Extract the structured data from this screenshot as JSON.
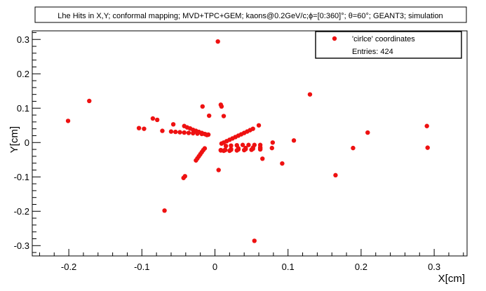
{
  "chart_data": {
    "type": "scatter",
    "title": "Lhe Hits in X,Y; conformal mapping; MVD+TPC+GEM; kaons@0.2GeV/c;ϕ=[0:360]°; θ=60°; GEANT3; simulation",
    "xlabel": "X[cm]",
    "ylabel": "Y[cm]",
    "xlim": [
      -0.25,
      0.345
    ],
    "ylim": [
      -0.33,
      0.325
    ],
    "x_ticks": [
      -0.2,
      -0.1,
      0,
      0.1,
      0.2,
      0.3
    ],
    "y_ticks": [
      -0.3,
      -0.2,
      -0.1,
      0,
      0.1,
      0.2,
      0.3
    ],
    "grid": false,
    "marker_color": "#ee1111",
    "legend": {
      "position": "top-right",
      "entry_label": "'cirlce' coordinates",
      "stats_label": "Entries:  424"
    },
    "series": [
      {
        "name": "'cirlce' coordinates",
        "points": [
          [
            0.004,
            0.294
          ],
          [
            -0.172,
            0.121
          ],
          [
            -0.201,
            0.063
          ],
          [
            0.13,
            0.14
          ],
          [
            0.008,
            0.11
          ],
          [
            0.009,
            0.105
          ],
          [
            -0.017,
            0.105
          ],
          [
            -0.085,
            0.07
          ],
          [
            -0.079,
            0.066
          ],
          [
            -0.104,
            0.042
          ],
          [
            -0.097,
            0.04
          ],
          [
            -0.072,
            0.034
          ],
          [
            -0.057,
            0.053
          ],
          [
            -0.008,
            0.078
          ],
          [
            0.012,
            0.077
          ],
          [
            0.06,
            0.05
          ],
          [
            0.108,
            0.006
          ],
          [
            0.079,
            0.0
          ],
          [
            0.078,
            -0.016
          ],
          [
            0.189,
            -0.016
          ],
          [
            0.209,
            0.029
          ],
          [
            0.29,
            0.048
          ],
          [
            0.291,
            -0.015
          ],
          [
            0.165,
            -0.095
          ],
          [
            0.092,
            -0.061
          ],
          [
            0.065,
            -0.047
          ],
          [
            0.005,
            -0.08
          ],
          [
            -0.041,
            -0.098
          ],
          [
            -0.043,
            -0.103
          ],
          [
            -0.069,
            -0.198
          ],
          [
            0.054,
            -0.286
          ],
          [
            -0.042,
            0.048
          ],
          [
            -0.038,
            0.044
          ],
          [
            -0.034,
            0.041
          ],
          [
            -0.03,
            0.037
          ],
          [
            -0.026,
            0.034
          ],
          [
            -0.022,
            0.031
          ],
          [
            -0.018,
            0.028
          ],
          [
            -0.014,
            0.025
          ],
          [
            -0.011,
            0.022
          ],
          [
            -0.06,
            0.032
          ],
          [
            -0.054,
            0.031
          ],
          [
            -0.048,
            0.03
          ],
          [
            -0.042,
            0.029
          ],
          [
            -0.036,
            0.028
          ],
          [
            -0.03,
            0.027
          ],
          [
            -0.024,
            0.026
          ],
          [
            -0.018,
            0.025
          ],
          [
            -0.013,
            0.024
          ],
          [
            -0.009,
            0.023
          ],
          [
            -0.026,
            -0.052
          ],
          [
            -0.024,
            -0.046
          ],
          [
            -0.022,
            -0.04
          ],
          [
            -0.02,
            -0.034
          ],
          [
            -0.018,
            -0.028
          ],
          [
            -0.016,
            -0.022
          ],
          [
            -0.014,
            -0.017
          ],
          [
            0.052,
            0.04
          ],
          [
            0.048,
            0.036
          ],
          [
            0.044,
            0.032
          ],
          [
            0.04,
            0.028
          ],
          [
            0.036,
            0.024
          ],
          [
            0.032,
            0.02
          ],
          [
            0.028,
            0.016
          ],
          [
            0.024,
            0.012
          ],
          [
            0.02,
            0.008
          ],
          [
            0.016,
            0.004
          ],
          [
            0.012,
            0.0
          ],
          [
            0.009,
            -0.003
          ],
          [
            0.062,
            -0.007
          ],
          [
            0.054,
            -0.007
          ],
          [
            0.046,
            -0.007
          ],
          [
            0.038,
            -0.007
          ],
          [
            0.03,
            -0.008
          ],
          [
            0.022,
            -0.009
          ],
          [
            0.015,
            -0.01
          ],
          [
            0.062,
            -0.014
          ],
          [
            0.052,
            -0.015
          ],
          [
            0.042,
            -0.016
          ],
          [
            0.032,
            -0.017
          ],
          [
            0.022,
            -0.019
          ],
          [
            0.014,
            -0.021
          ],
          [
            0.008,
            -0.022
          ],
          [
            0.062,
            -0.017
          ],
          [
            0.052,
            -0.018
          ],
          [
            0.042,
            -0.019
          ],
          [
            0.032,
            -0.02
          ],
          [
            0.022,
            -0.021
          ],
          [
            0.014,
            -0.022
          ],
          [
            0.008,
            -0.023
          ],
          [
            0.062,
            -0.02
          ],
          [
            0.05,
            -0.021
          ],
          [
            0.04,
            -0.022
          ],
          [
            0.03,
            -0.023
          ],
          [
            0.02,
            -0.024
          ],
          [
            0.012,
            -0.024
          ]
        ]
      }
    ]
  }
}
